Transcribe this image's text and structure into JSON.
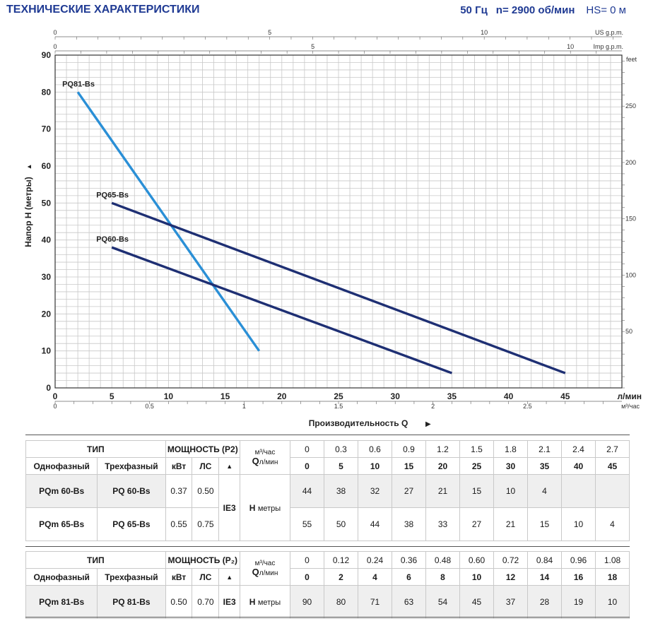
{
  "header": {
    "title": "ТЕХНИЧЕСКИЕ ХАРАКТЕРИСТИКИ",
    "freq": "50 Гц",
    "speed": "n= 2900 об/мин",
    "hs": "HS= 0 м"
  },
  "chart_data": {
    "type": "line",
    "xlabel": "Производительность Q",
    "ylabel": "Напор H (метры)",
    "x_unit": "л/мин",
    "xlim": [
      0,
      50
    ],
    "ylim": [
      0,
      90
    ],
    "x_ticks": [
      0,
      5,
      10,
      15,
      20,
      25,
      30,
      35,
      40,
      45
    ],
    "y_ticks": [
      0,
      10,
      20,
      30,
      40,
      50,
      60,
      70,
      80,
      90
    ],
    "grid": true,
    "secondary_axes": {
      "us_gpm": {
        "label": "US g.p.m.",
        "ticks": [
          0,
          5,
          10
        ]
      },
      "imp_gpm": {
        "label": "Imp g.p.m.",
        "ticks": [
          0,
          5,
          10
        ]
      },
      "feet": {
        "label": "feet",
        "ticks": [
          50,
          100,
          150,
          200,
          250
        ]
      },
      "m3h": {
        "label": "м³/час",
        "ticks": [
          0,
          0.5,
          1,
          1.5,
          2,
          2.5
        ]
      }
    },
    "series": [
      {
        "name": "PQ81-Bs",
        "color": "#2a8fd6",
        "x": [
          2,
          18
        ],
        "y": [
          80,
          10
        ]
      },
      {
        "name": "PQ65-Bs",
        "color": "#1e2f73",
        "x": [
          5,
          45
        ],
        "y": [
          50,
          4
        ]
      },
      {
        "name": "PQ60-Bs",
        "color": "#1e2f73",
        "x": [
          5,
          35
        ],
        "y": [
          38,
          4
        ]
      }
    ]
  },
  "table1": {
    "type_label": "ТИП",
    "power_label": "МОЩНОСТЬ (P2)",
    "m3_label": "м³/час",
    "q_label": "Q",
    "q_sub": "л/мин",
    "single_label": "Однофазный",
    "three_label": "Трехфазный",
    "kw_label": "кВт",
    "hp_label": "ЛС",
    "ie_sym": "▲",
    "ie_value": "IE3",
    "h_label": "H",
    "h_sub": "метры",
    "m3": [
      "0",
      "0.3",
      "0.6",
      "0.9",
      "1.2",
      "1.5",
      "1.8",
      "2.1",
      "2.4",
      "2.7"
    ],
    "lmin": [
      "0",
      "5",
      "10",
      "15",
      "20",
      "25",
      "30",
      "35",
      "40",
      "45"
    ],
    "rows": [
      {
        "single": "PQm 60-Bs",
        "three": "PQ 60-Bs",
        "kw": "0.37",
        "hp": "0.50",
        "h": [
          "44",
          "38",
          "32",
          "27",
          "21",
          "15",
          "10",
          "4",
          "",
          ""
        ]
      },
      {
        "single": "PQm 65-Bs",
        "three": "PQ 65-Bs",
        "kw": "0.55",
        "hp": "0.75",
        "h": [
          "55",
          "50",
          "44",
          "38",
          "33",
          "27",
          "21",
          "15",
          "10",
          "4"
        ]
      }
    ]
  },
  "table2": {
    "type_label": "ТИП",
    "power_label": "МОЩНОСТЬ (P₂)",
    "m3_label": "м³/час",
    "q_label": "Q",
    "q_sub": "л/мин",
    "single_label": "Однофазный",
    "three_label": "Трехфазный",
    "kw_label": "кВт",
    "hp_label": "ЛС",
    "ie_sym": "▲",
    "ie_value": "IE3",
    "h_label": "H",
    "h_sub": "метры",
    "m3": [
      "0",
      "0.12",
      "0.24",
      "0.36",
      "0.48",
      "0.60",
      "0.72",
      "0.84",
      "0.96",
      "1.08"
    ],
    "lmin": [
      "0",
      "2",
      "4",
      "6",
      "8",
      "10",
      "12",
      "14",
      "16",
      "18"
    ],
    "rows": [
      {
        "single": "PQm 81-Bs",
        "three": "PQ 81-Bs",
        "kw": "0.50",
        "hp": "0.70",
        "h": [
          "90",
          "80",
          "71",
          "63",
          "54",
          "45",
          "37",
          "28",
          "19",
          "10"
        ]
      }
    ]
  }
}
